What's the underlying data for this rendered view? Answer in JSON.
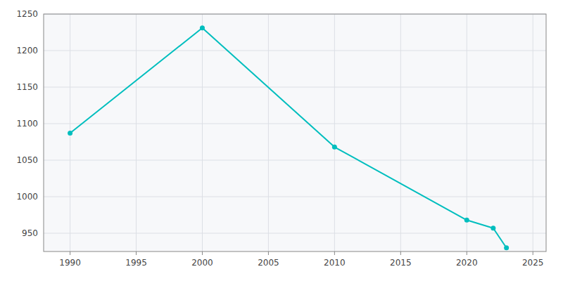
{
  "chart_data": {
    "type": "line",
    "x": [
      1990,
      2000,
      2010,
      2020,
      2022,
      2023
    ],
    "values": [
      1087,
      1231,
      1068,
      968,
      957,
      930
    ],
    "color": "#00BEBE",
    "marker": "circle",
    "xlim": [
      1988,
      2026
    ],
    "ylim": [
      925,
      1250
    ],
    "xticks": [
      1990,
      1995,
      2000,
      2005,
      2010,
      2015,
      2020,
      2025
    ],
    "yticks": [
      950,
      1000,
      1050,
      1100,
      1150,
      1200,
      1250
    ],
    "grid": true
  }
}
